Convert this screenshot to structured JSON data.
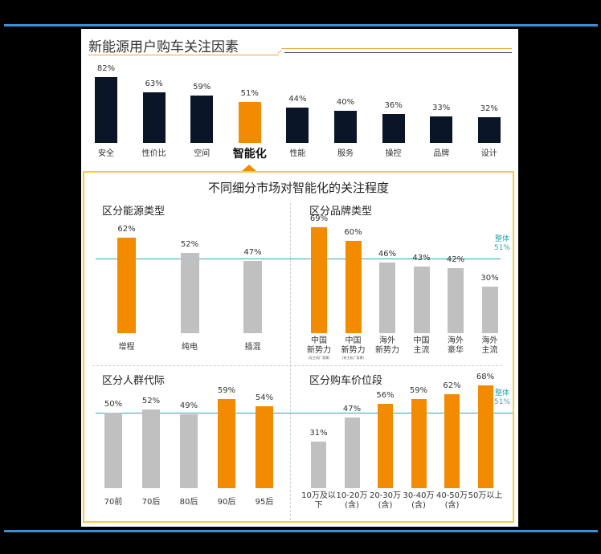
{
  "header": {
    "title": "新能源用户购车关注因素",
    "subtitle": "不同细分市场对智能化的关注程度"
  },
  "colors": {
    "dark_bar": "#0a1628",
    "highlight": "#f28b00",
    "gray_bar": "#c0c0c0",
    "reference_line": "#2aa9b0",
    "panel_border": "#f7c948",
    "frame_line": "#3d8fd0"
  },
  "reference": {
    "label": "整体",
    "value": "51%"
  },
  "chart_data": [
    {
      "type": "bar",
      "title": "新能源用户购车关注因素",
      "categories": [
        "安全",
        "性价比",
        "空间",
        "智能化",
        "性能",
        "服务",
        "操控",
        "品牌",
        "设计"
      ],
      "values": [
        82,
        63,
        59,
        51,
        44,
        40,
        36,
        33,
        32
      ],
      "labels": [
        "82%",
        "63%",
        "59%",
        "51%",
        "44%",
        "40%",
        "36%",
        "33%",
        "32%"
      ],
      "highlight": "智能化",
      "ylabel": "",
      "xlabel": "",
      "ylim": [
        0,
        100
      ],
      "grid": false
    },
    {
      "type": "bar",
      "title": "区分能源类型",
      "categories": [
        "增程",
        "纯电",
        "插混"
      ],
      "values": [
        62,
        52,
        47
      ],
      "labels": [
        "62%",
        "52%",
        "47%"
      ],
      "highlight": [
        "增程"
      ],
      "reference_line": {
        "label": "整体",
        "value": 51
      },
      "ylim": [
        0,
        100
      ]
    },
    {
      "type": "bar",
      "title": "区分品牌类型",
      "categories": [
        "中国新势力（无主机厂背景）",
        "中国新势力（有主机厂背景）",
        "海外新势力",
        "中国主流",
        "海外豪华",
        "海外主流"
      ],
      "values": [
        69,
        60,
        46,
        43,
        42,
        30
      ],
      "labels": [
        "69%",
        "60%",
        "46%",
        "43%",
        "42%",
        "30%"
      ],
      "highlight": [
        "中国新势力（无主机厂背景）",
        "中国新势力（有主机厂背景）"
      ],
      "reference_line": {
        "label": "整体",
        "value": 51
      },
      "ylim": [
        0,
        100
      ]
    },
    {
      "type": "bar",
      "title": "区分人群代际",
      "categories": [
        "70前",
        "70后",
        "80后",
        "90后",
        "95后"
      ],
      "values": [
        50,
        52,
        49,
        59,
        54
      ],
      "labels": [
        "50%",
        "52%",
        "49%",
        "59%",
        "54%"
      ],
      "highlight": [
        "90后",
        "95后"
      ],
      "reference_line": {
        "label": "整体",
        "value": 51
      },
      "ylim": [
        0,
        100
      ]
    },
    {
      "type": "bar",
      "title": "区分购车价位段",
      "categories": [
        "10万及以下",
        "10-20万(含)",
        "20-30万(含)",
        "30-40万(含)",
        "40-50万(含)",
        "50万以上"
      ],
      "values": [
        31,
        47,
        56,
        59,
        62,
        68
      ],
      "labels": [
        "31%",
        "47%",
        "56%",
        "59%",
        "62%",
        "68%"
      ],
      "highlight": [
        "20-30万(含)",
        "30-40万(含)",
        "40-50万(含)",
        "50万以上"
      ],
      "reference_line": {
        "label": "整体",
        "value": 51
      },
      "ylim": [
        0,
        100
      ]
    }
  ],
  "top_chart": {
    "bars": [
      {
        "cat": "安全",
        "val": "82%"
      },
      {
        "cat": "性价比",
        "val": "63%"
      },
      {
        "cat": "空间",
        "val": "59%"
      },
      {
        "cat": "智能化",
        "val": "51%"
      },
      {
        "cat": "性能",
        "val": "44%"
      },
      {
        "cat": "服务",
        "val": "40%"
      },
      {
        "cat": "操控",
        "val": "36%"
      },
      {
        "cat": "品牌",
        "val": "33%"
      },
      {
        "cat": "设计",
        "val": "32%"
      }
    ]
  },
  "energy": {
    "title": "区分能源类型",
    "bars": [
      {
        "cat": "增程",
        "val": "62%"
      },
      {
        "cat": "纯电",
        "val": "52%"
      },
      {
        "cat": "插混",
        "val": "47%"
      }
    ]
  },
  "brand": {
    "title": "区分品牌类型",
    "bars": [
      {
        "line1": "中国",
        "line2": "新势力",
        "sub": "(无主机厂背景)",
        "val": "69%"
      },
      {
        "line1": "中国",
        "line2": "新势力",
        "sub": "(有主机厂背景)",
        "val": "60%"
      },
      {
        "line1": "海外",
        "line2": "新势力",
        "sub": "",
        "val": "46%"
      },
      {
        "line1": "中国",
        "line2": "主流",
        "sub": "",
        "val": "43%"
      },
      {
        "line1": "海外",
        "line2": "豪华",
        "sub": "",
        "val": "42%"
      },
      {
        "line1": "海外",
        "line2": "主流",
        "sub": "",
        "val": "30%"
      }
    ]
  },
  "generation": {
    "title": "区分人群代际",
    "bars": [
      {
        "cat": "70前",
        "val": "50%"
      },
      {
        "cat": "70后",
        "val": "52%"
      },
      {
        "cat": "80后",
        "val": "49%"
      },
      {
        "cat": "90后",
        "val": "59%"
      },
      {
        "cat": "95后",
        "val": "54%"
      }
    ]
  },
  "price": {
    "title": "区分购车价位段",
    "bars": [
      {
        "line1": "10万及以",
        "line2": "下",
        "val": "31%"
      },
      {
        "line1": "10-20万",
        "line2": "(含)",
        "val": "47%"
      },
      {
        "line1": "20-30万",
        "line2": "(含)",
        "val": "56%"
      },
      {
        "line1": "30-40万",
        "line2": "(含)",
        "val": "59%"
      },
      {
        "line1": "40-50万",
        "line2": "(含)",
        "val": "62%"
      },
      {
        "line1": "50万以上",
        "line2": "",
        "val": "68%"
      }
    ]
  }
}
